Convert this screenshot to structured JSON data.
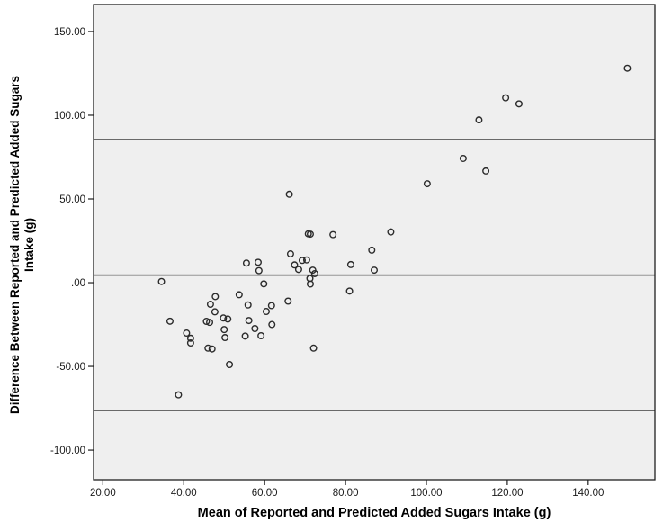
{
  "chart_data": {
    "type": "scatter",
    "title": "",
    "xlabel": "Mean of Reported and Predicted Added Sugars Intake (g)",
    "ylabel": "Difference Between Reported and Predicted Added Sugars Intake (g)",
    "ylabel_lines": [
      "Difference Between Reported and Predicted Added Sugars",
      "Intake (g)"
    ],
    "xlim": [
      17.7,
      156.5
    ],
    "ylim": [
      -117.7,
      166.1
    ],
    "x_ticks": {
      "values": [
        20,
        40,
        60,
        80,
        100,
        120,
        140
      ],
      "labels": [
        "20.00",
        "40.00",
        "60.00",
        "80.00",
        "100.00",
        "120.00",
        "140.00"
      ]
    },
    "y_ticks": {
      "values": [
        150,
        100,
        50,
        0,
        -50,
        -100
      ],
      "labels": [
        "150.00",
        "100.00",
        "50.00",
        ".00",
        "-50.00",
        "-100.00"
      ]
    },
    "reference_lines": [
      85.5,
      4.5,
      -76.3
    ],
    "grid": "off",
    "legend": "none",
    "marker": "open-circle",
    "colors": {
      "plot_bg": "#efefef",
      "axis": "#1f1f1f",
      "reference_line": "#3d3d3d",
      "marker": "#2b2b2b",
      "tick_label": "#1a1a1a"
    },
    "points": [
      [
        34.5,
        0.7
      ],
      [
        36.6,
        -23.0
      ],
      [
        38.7,
        -67.0
      ],
      [
        40.7,
        -30.1
      ],
      [
        41.7,
        -33.2
      ],
      [
        41.7,
        -36.0
      ],
      [
        45.6,
        -23.1
      ],
      [
        46.0,
        -39.1
      ],
      [
        46.4,
        -23.7
      ],
      [
        46.6,
        -12.9
      ],
      [
        47.0,
        -39.6
      ],
      [
        47.7,
        -17.4
      ],
      [
        47.8,
        -8.3
      ],
      [
        49.8,
        -21.1
      ],
      [
        50.0,
        -28.0
      ],
      [
        50.2,
        -32.8
      ],
      [
        50.9,
        -21.7
      ],
      [
        51.3,
        -48.9
      ],
      [
        53.7,
        -7.2
      ],
      [
        55.2,
        -31.9
      ],
      [
        55.5,
        11.7
      ],
      [
        55.9,
        -13.3
      ],
      [
        56.1,
        -22.6
      ],
      [
        57.6,
        -27.4
      ],
      [
        58.4,
        12.2
      ],
      [
        58.6,
        7.2
      ],
      [
        59.1,
        -31.7
      ],
      [
        59.8,
        -0.7
      ],
      [
        60.4,
        -17.2
      ],
      [
        61.7,
        -13.7
      ],
      [
        61.8,
        -25.0
      ],
      [
        65.8,
        -11.0
      ],
      [
        66.1,
        52.8
      ],
      [
        66.4,
        17.2
      ],
      [
        67.4,
        10.6
      ],
      [
        68.4,
        7.9
      ],
      [
        69.3,
        13.3
      ],
      [
        70.4,
        13.6
      ],
      [
        70.8,
        29.2
      ],
      [
        71.3,
        29.0
      ],
      [
        71.2,
        2.5
      ],
      [
        71.3,
        -0.8
      ],
      [
        71.9,
        7.5
      ],
      [
        72.4,
        5.4
      ],
      [
        72.1,
        -39.1
      ],
      [
        76.9,
        28.7
      ],
      [
        81.0,
        -5.0
      ],
      [
        81.3,
        10.8
      ],
      [
        86.5,
        19.4
      ],
      [
        87.1,
        7.5
      ],
      [
        91.2,
        30.3
      ],
      [
        100.2,
        59.1
      ],
      [
        109.1,
        74.2
      ],
      [
        113.0,
        97.2
      ],
      [
        114.7,
        66.7
      ],
      [
        119.6,
        110.4
      ],
      [
        122.9,
        106.8
      ],
      [
        149.7,
        128.1
      ]
    ]
  }
}
